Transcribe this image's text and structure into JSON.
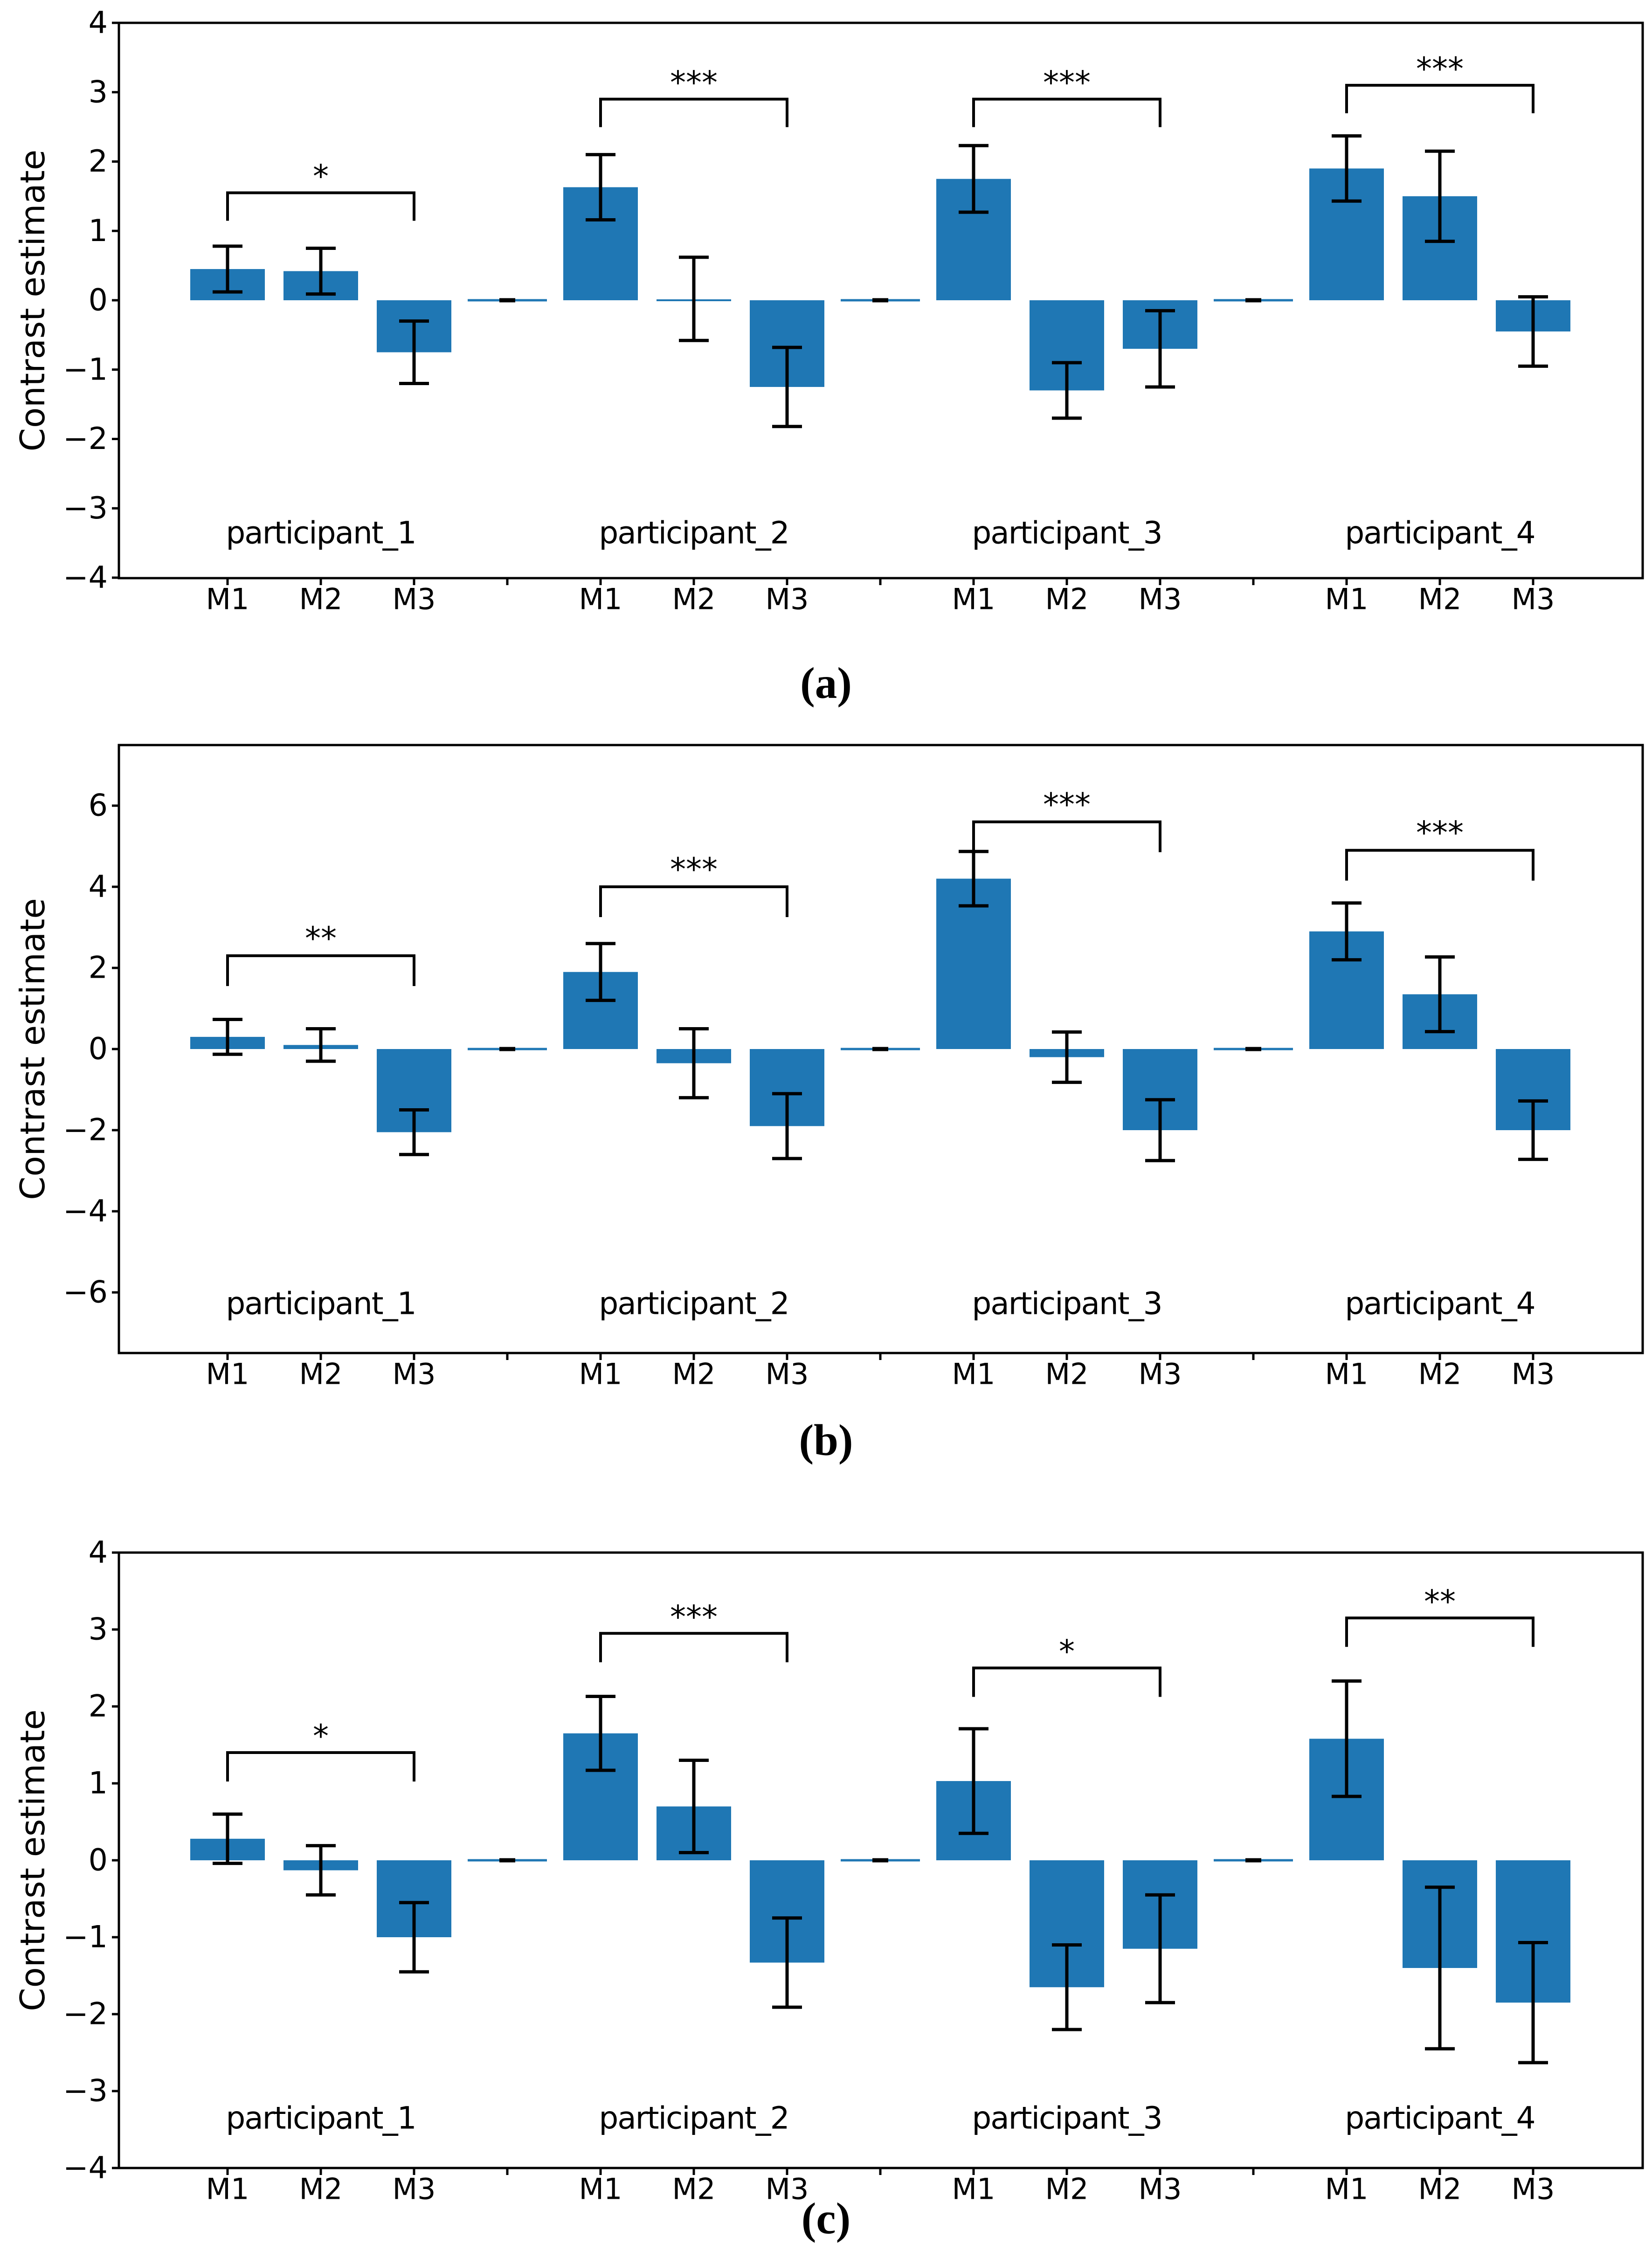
{
  "figure": {
    "background": "#ffffff",
    "bar_color": "#1f77b4",
    "axis_color": "#000000",
    "error_bar_color": "#000000",
    "ylabel": "Contrast estimate",
    "captions": [
      "(a)",
      "(b)",
      "(c)"
    ],
    "group_separator_marks": "short black dash on thin blue zero-line between participant groups"
  },
  "chart_data": [
    {
      "type": "bar",
      "caption": "(a)",
      "ylabel": "Contrast estimate",
      "ylim": [
        -4,
        4
      ],
      "yticks": [
        -4,
        -3,
        -2,
        -1,
        0,
        1,
        2,
        3,
        4
      ],
      "categories": [
        "M1",
        "M2",
        "M3"
      ],
      "grid": false,
      "legend": "none",
      "groups": [
        {
          "label": "participant_1",
          "values": [
            0.45,
            0.42,
            -0.75
          ],
          "errors": [
            0.33,
            0.33,
            0.45
          ],
          "sig": {
            "label": "*",
            "y": 1.55,
            "from": "M1",
            "to": "M3"
          }
        },
        {
          "label": "participant_2",
          "values": [
            1.63,
            0.02,
            -1.25
          ],
          "errors": [
            0.47,
            0.6,
            0.57
          ],
          "sig": {
            "label": "***",
            "y": 2.9,
            "from": "M1",
            "to": "M3"
          }
        },
        {
          "label": "participant_3",
          "values": [
            1.75,
            -1.3,
            -0.7
          ],
          "errors": [
            0.48,
            0.4,
            0.55
          ],
          "sig": {
            "label": "***",
            "y": 2.9,
            "from": "M1",
            "to": "M3"
          }
        },
        {
          "label": "participant_4",
          "values": [
            1.9,
            1.5,
            -0.45
          ],
          "errors": [
            0.47,
            0.65,
            0.5
          ],
          "sig": {
            "label": "***",
            "y": 3.1,
            "from": "M1",
            "to": "M3"
          }
        }
      ]
    },
    {
      "type": "bar",
      "caption": "(b)",
      "ylabel": "Contrast estimate",
      "ylim": [
        -7.5,
        7.5
      ],
      "yticks": [
        -6,
        -4,
        -2,
        0,
        2,
        4,
        6
      ],
      "categories": [
        "M1",
        "M2",
        "M3"
      ],
      "grid": false,
      "legend": "none",
      "groups": [
        {
          "label": "participant_1",
          "values": [
            0.3,
            0.1,
            -2.05
          ],
          "errors": [
            0.43,
            0.4,
            0.55
          ],
          "sig": {
            "label": "**",
            "y": 2.3,
            "from": "M1",
            "to": "M3"
          }
        },
        {
          "label": "participant_2",
          "values": [
            1.9,
            -0.35,
            -1.9
          ],
          "errors": [
            0.7,
            0.85,
            0.8
          ],
          "sig": {
            "label": "***",
            "y": 4.0,
            "from": "M1",
            "to": "M3"
          }
        },
        {
          "label": "participant_3",
          "values": [
            4.2,
            -0.2,
            -2.0
          ],
          "errors": [
            0.67,
            0.62,
            0.75
          ],
          "sig": {
            "label": "***",
            "y": 5.6,
            "from": "M1",
            "to": "M3"
          }
        },
        {
          "label": "participant_4",
          "values": [
            2.9,
            1.35,
            -2.0
          ],
          "errors": [
            0.7,
            0.92,
            0.72
          ],
          "sig": {
            "label": "***",
            "y": 4.9,
            "from": "M1",
            "to": "M3"
          }
        }
      ]
    },
    {
      "type": "bar",
      "caption": "(c)",
      "ylabel": "Contrast estimate",
      "ylim": [
        -4,
        4
      ],
      "yticks": [
        -4,
        -3,
        -2,
        -1,
        0,
        1,
        2,
        3,
        4
      ],
      "categories": [
        "M1",
        "M2",
        "M3"
      ],
      "grid": false,
      "legend": "none",
      "groups": [
        {
          "label": "participant_1",
          "values": [
            0.28,
            -0.13,
            -1.0
          ],
          "errors": [
            0.32,
            0.32,
            0.45
          ],
          "sig": {
            "label": "*",
            "y": 1.4,
            "from": "M1",
            "to": "M3"
          }
        },
        {
          "label": "participant_2",
          "values": [
            1.65,
            0.7,
            -1.33
          ],
          "errors": [
            0.48,
            0.6,
            0.58
          ],
          "sig": {
            "label": "***",
            "y": 2.95,
            "from": "M1",
            "to": "M3"
          }
        },
        {
          "label": "participant_3",
          "values": [
            1.03,
            -1.65,
            -1.15
          ],
          "errors": [
            0.68,
            0.55,
            0.7
          ],
          "sig": {
            "label": "*",
            "y": 2.5,
            "from": "M1",
            "to": "M3"
          }
        },
        {
          "label": "participant_4",
          "values": [
            1.58,
            -1.4,
            -1.85
          ],
          "errors": [
            0.75,
            1.05,
            0.78
          ],
          "sig": {
            "label": "**",
            "y": 3.15,
            "from": "M1",
            "to": "M3"
          }
        }
      ]
    }
  ]
}
